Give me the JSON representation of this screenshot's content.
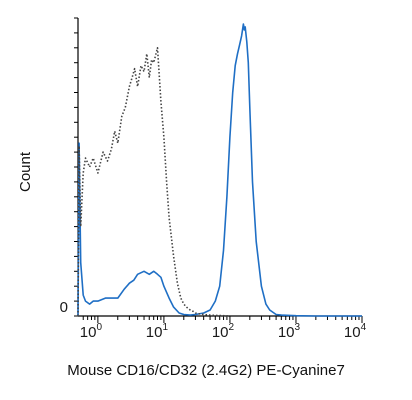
{
  "chart_data": {
    "type": "histogram",
    "xlabel": "Mouse CD16/CD32 (2.4G2) PE-Cyanine7",
    "ylabel": "Count",
    "x_scale": "log",
    "xlim": [
      0.5,
      10000
    ],
    "ylim": [
      0,
      100
    ],
    "x_ticks": [
      {
        "base": "10",
        "exp": "0",
        "value": 1
      },
      {
        "base": "10",
        "exp": "1",
        "value": 10
      },
      {
        "base": "10",
        "exp": "2",
        "value": 100
      },
      {
        "base": "10",
        "exp": "3",
        "value": 1000
      },
      {
        "base": "10",
        "exp": "4",
        "value": 10000
      }
    ],
    "y_tick_label": "0",
    "series": [
      {
        "color": "#1f6fc5",
        "style": "solid",
        "x": [
          0.5,
          0.52,
          0.55,
          0.6,
          0.65,
          0.75,
          0.85,
          1,
          1.3,
          1.6,
          2,
          2.5,
          3,
          3.5,
          4,
          5,
          6,
          7,
          8,
          9,
          10,
          12,
          14,
          17,
          20,
          25,
          30,
          40,
          50,
          60,
          70,
          80,
          90,
          100,
          110,
          120,
          130,
          140,
          150,
          160,
          165,
          170,
          180,
          190,
          200,
          220,
          250,
          300,
          350,
          400,
          500,
          600,
          800,
          1000,
          2000,
          5000,
          10000
        ],
        "y": [
          0,
          58,
          18,
          7,
          5,
          4,
          5,
          5,
          6,
          6,
          6,
          9,
          11,
          12,
          14,
          15,
          14,
          15,
          14,
          13,
          10,
          6,
          3,
          1,
          0.5,
          0.3,
          0.5,
          1,
          2,
          5,
          10,
          22,
          40,
          60,
          75,
          84,
          88,
          91,
          94,
          98,
          96,
          97,
          92,
          85,
          70,
          45,
          25,
          10,
          4,
          2,
          0.5,
          0.3,
          0.2,
          0.1,
          0,
          0,
          0
        ]
      },
      {
        "color": "#444444",
        "style": "dotted",
        "x": [
          0.5,
          0.52,
          0.55,
          0.6,
          0.65,
          0.75,
          0.85,
          1,
          1.2,
          1.4,
          1.6,
          1.8,
          2,
          2.3,
          2.6,
          3,
          3.3,
          3.6,
          4,
          4.5,
          5,
          5.5,
          6,
          6.5,
          7,
          8,
          9,
          10,
          11,
          12,
          14,
          16,
          18,
          20,
          22,
          25,
          28,
          30,
          35,
          40,
          50,
          60,
          80,
          100
        ],
        "y": [
          0,
          57,
          30,
          48,
          53,
          50,
          53,
          48,
          55,
          52,
          56,
          62,
          58,
          67,
          70,
          77,
          80,
          83,
          77,
          84,
          82,
          88,
          80,
          86,
          85,
          90,
          72,
          60,
          45,
          33,
          20,
          11,
          6,
          4,
          3,
          2,
          1.5,
          1,
          0.7,
          0.5,
          0.3,
          0.2,
          0.1,
          0
        ]
      }
    ]
  }
}
